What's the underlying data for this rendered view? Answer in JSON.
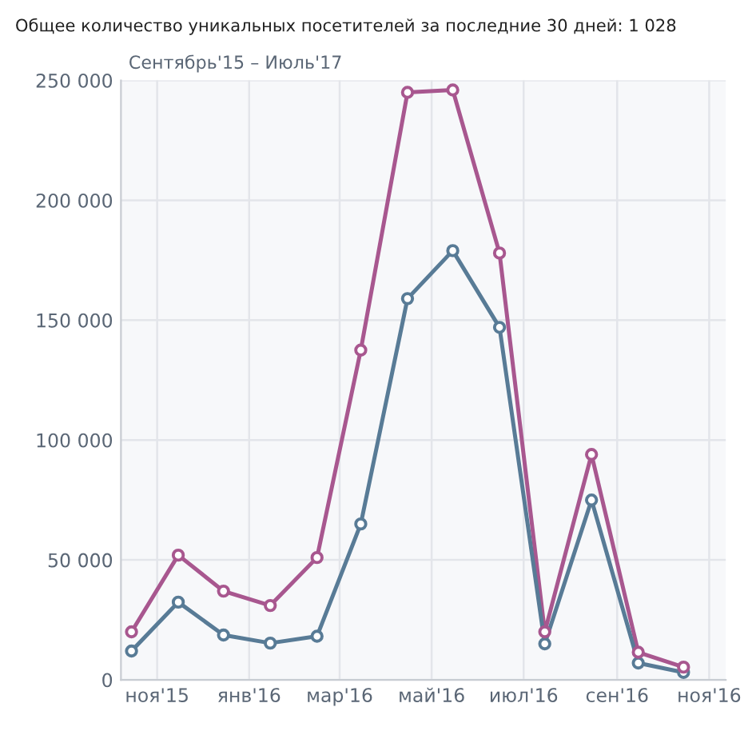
{
  "chart_data": {
    "type": "line",
    "title": "Общее количество уникальных посетителей за последние 30 дней: 1 028",
    "subtitle": "Сентябрь'15 – Июль'17",
    "x": [
      "2015-10-15",
      "2015-11-15",
      "2015-12-15",
      "2016-01-15",
      "2016-02-15",
      "2016-03-15",
      "2016-04-15",
      "2016-05-15",
      "2016-06-15",
      "2016-07-15",
      "2016-08-15",
      "2016-09-15",
      "2016-10-15"
    ],
    "series": [
      {
        "color": "#a8578f",
        "values": [
          20000,
          52000,
          37000,
          31000,
          51000,
          137500,
          245000,
          246000,
          178000,
          20000,
          94000,
          11500,
          5300
        ]
      },
      {
        "color": "#587b96",
        "values": [
          12000,
          32400,
          18700,
          15300,
          18200,
          65000,
          159000,
          179000,
          147000,
          15000,
          75000,
          7000,
          3100
        ]
      }
    ],
    "xlim": [
      "2015-10-08",
      "2016-11-12"
    ],
    "xticks": [
      {
        "value": "2015-11-01",
        "label": "ноя'15"
      },
      {
        "value": "2016-01-01",
        "label": "янв'16"
      },
      {
        "value": "2016-03-01",
        "label": "мар'16"
      },
      {
        "value": "2016-05-01",
        "label": "май'16"
      },
      {
        "value": "2016-07-01",
        "label": "июл'16"
      },
      {
        "value": "2016-09-01",
        "label": "сен'16"
      },
      {
        "value": "2016-11-01",
        "label": "ноя'16"
      }
    ],
    "ylim": [
      0,
      250000
    ],
    "yticks": [
      {
        "value": 0,
        "label": "0"
      },
      {
        "value": 50000,
        "label": "50 000"
      },
      {
        "value": 100000,
        "label": "100 000"
      },
      {
        "value": 150000,
        "label": "150 000"
      },
      {
        "value": 200000,
        "label": "200 000"
      },
      {
        "value": 250000,
        "label": "250 000"
      }
    ],
    "grid": true,
    "marker": "circle",
    "line_style": "solid",
    "legend": false
  }
}
